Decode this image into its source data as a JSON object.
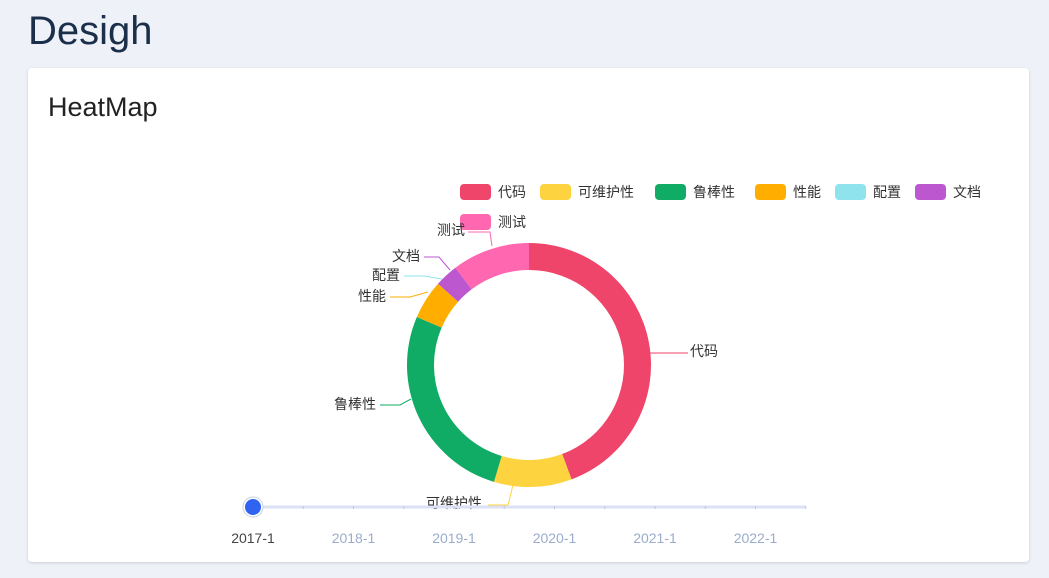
{
  "page": {
    "title": "Desigh"
  },
  "card": {
    "title": "HeatMap"
  },
  "chart_data": {
    "type": "pie",
    "title": "",
    "donut": true,
    "legend_position": "top-right",
    "slices": [
      {
        "name": "代码",
        "value": 43,
        "color": "#ef456a"
      },
      {
        "name": "可维护性",
        "value": 10,
        "color": "#fdd33f"
      },
      {
        "name": "鲁棒性",
        "value": 26,
        "color": "#10ab65"
      },
      {
        "name": "性能",
        "value": 5,
        "color": "#ffae00"
      },
      {
        "name": "配置",
        "value": 0,
        "color": "#8fe3ed"
      },
      {
        "name": "文档",
        "value": 3,
        "color": "#bc57d0"
      },
      {
        "name": "测试",
        "value": 10,
        "color": "#ff67b0"
      }
    ]
  },
  "timeline": {
    "ticks": [
      "2017-1",
      "2018-1",
      "2019-1",
      "2020-1",
      "2021-1",
      "2022-1"
    ],
    "current": "2017-1",
    "handle_color": "#2f63f0"
  }
}
